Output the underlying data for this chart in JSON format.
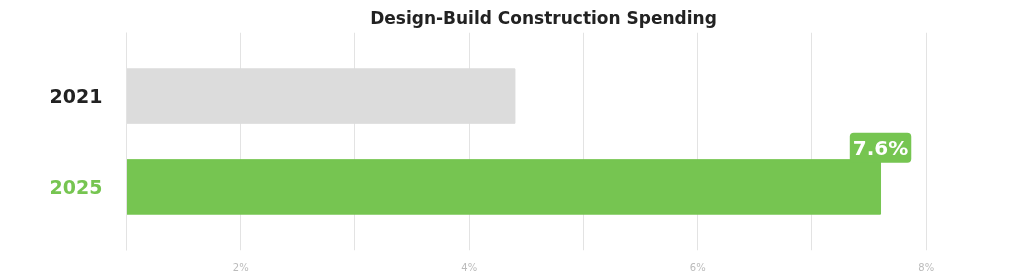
{
  "chart_data": {
    "type": "bar",
    "orientation": "horizontal",
    "title": "Design-Build Construction Spending",
    "categories": [
      "2021",
      "2025"
    ],
    "values": [
      4.4,
      7.6
    ],
    "colors": [
      "#dcdcdc",
      "#76c551"
    ],
    "value_labels": [
      null,
      "7.6%"
    ],
    "xlim": [
      1,
      8
    ],
    "xticks": [
      {
        "value": 2,
        "label": "2%"
      },
      {
        "value": 3,
        "label": null
      },
      {
        "value": 4,
        "label": "4%"
      },
      {
        "value": 5,
        "label": null
      },
      {
        "value": 6,
        "label": "6%"
      },
      {
        "value": 7,
        "label": null
      },
      {
        "value": 8,
        "label": "8%"
      }
    ],
    "grid": "x"
  }
}
